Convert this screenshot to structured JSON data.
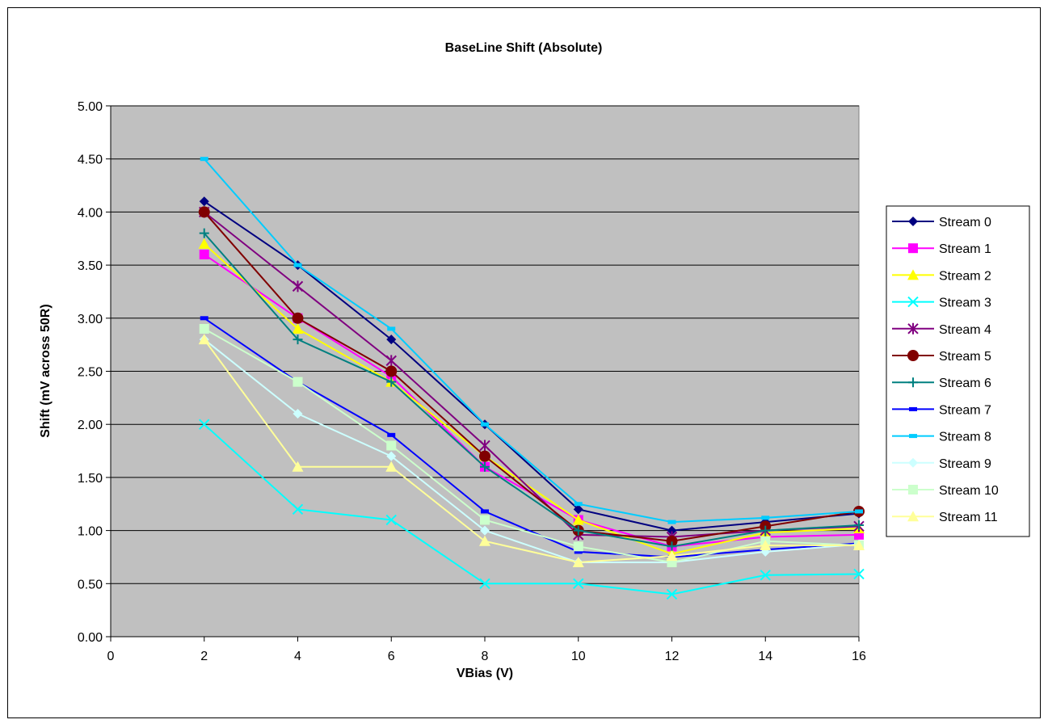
{
  "chart_data": {
    "type": "line",
    "title": "BaseLine Shift (Absolute)",
    "xlabel": "VBias (V)",
    "ylabel": "Shift (mV across 50R)",
    "xlim": [
      0,
      16
    ],
    "ylim": [
      0,
      5
    ],
    "x_ticks": [
      "0",
      "2",
      "4",
      "6",
      "8",
      "10",
      "12",
      "14",
      "16"
    ],
    "y_ticks": [
      "0.00",
      "0.50",
      "1.00",
      "1.50",
      "2.00",
      "2.50",
      "3.00",
      "3.50",
      "4.00",
      "4.50",
      "5.00"
    ],
    "grid": true,
    "plot_background": "#c0c0c0",
    "legend_position": "right",
    "x": [
      2,
      4,
      6,
      8,
      10,
      12,
      14,
      16
    ],
    "series": [
      {
        "name": "Stream 0",
        "color": "#000080",
        "marker": "diamond",
        "values": [
          4.1,
          3.5,
          2.8,
          2.0,
          1.2,
          1.0,
          1.08,
          1.16
        ]
      },
      {
        "name": "Stream 1",
        "color": "#ff00ff",
        "marker": "square",
        "values": [
          3.6,
          3.0,
          2.45,
          1.6,
          1.1,
          0.85,
          0.94,
          0.96
        ]
      },
      {
        "name": "Stream 2",
        "color": "#ffff00",
        "marker": "triangle",
        "values": [
          3.7,
          2.9,
          2.4,
          1.7,
          1.1,
          0.78,
          0.98,
          1.02
        ]
      },
      {
        "name": "Stream 3",
        "color": "#00ffff",
        "marker": "x",
        "values": [
          2.0,
          1.2,
          1.1,
          0.5,
          0.5,
          0.4,
          0.58,
          0.59
        ]
      },
      {
        "name": "Stream 4",
        "color": "#800080",
        "marker": "star",
        "values": [
          4.0,
          3.3,
          2.6,
          1.8,
          0.96,
          0.94,
          1.0,
          1.04
        ]
      },
      {
        "name": "Stream 5",
        "color": "#800000",
        "marker": "circle",
        "values": [
          4.0,
          3.0,
          2.5,
          1.7,
          1.0,
          0.9,
          1.04,
          1.18
        ]
      },
      {
        "name": "Stream 6",
        "color": "#008080",
        "marker": "plus",
        "values": [
          3.8,
          2.8,
          2.4,
          1.6,
          1.0,
          0.85,
          1.0,
          1.05
        ]
      },
      {
        "name": "Stream 7",
        "color": "#0000ff",
        "marker": "dash",
        "values": [
          3.0,
          2.4,
          1.9,
          1.18,
          0.8,
          0.75,
          0.82,
          0.88
        ]
      },
      {
        "name": "Stream 8",
        "color": "#00ccff",
        "marker": "dash",
        "values": [
          4.5,
          3.5,
          2.9,
          2.0,
          1.25,
          1.08,
          1.12,
          1.18
        ]
      },
      {
        "name": "Stream 9",
        "color": "#ccffff",
        "marker": "diamond",
        "values": [
          2.8,
          2.1,
          1.7,
          1.0,
          0.7,
          0.7,
          0.8,
          0.87
        ]
      },
      {
        "name": "Stream 10",
        "color": "#ccffcc",
        "marker": "square",
        "values": [
          2.9,
          2.4,
          1.8,
          1.1,
          0.85,
          0.7,
          0.9,
          0.86
        ]
      },
      {
        "name": "Stream 11",
        "color": "#ffff99",
        "marker": "triangle",
        "values": [
          2.8,
          1.6,
          1.6,
          0.9,
          0.7,
          0.76,
          0.86,
          0.86
        ]
      }
    ]
  }
}
